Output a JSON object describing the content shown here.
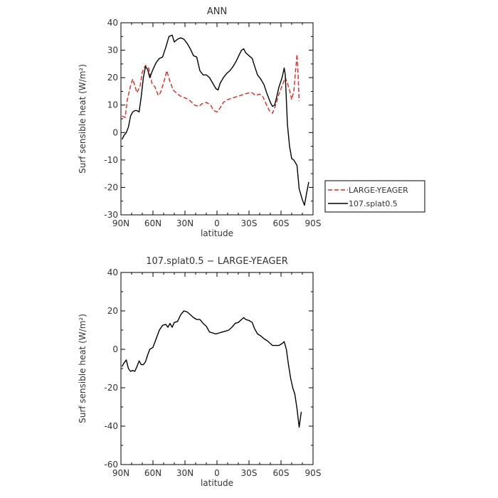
{
  "chart_data": [
    {
      "type": "line",
      "title": "ANN",
      "xlabel": "latitude",
      "ylabel": "Surf sensible heat (W/m²)",
      "xlim": [
        90,
        -90
      ],
      "ylim": [
        -30,
        40
      ],
      "x_ticks": [
        {
          "value": 90,
          "label": "90N"
        },
        {
          "value": 60,
          "label": "60N"
        },
        {
          "value": 30,
          "label": "30N"
        },
        {
          "value": 0,
          "label": "0"
        },
        {
          "value": -30,
          "label": "30S"
        },
        {
          "value": -60,
          "label": "60S"
        },
        {
          "value": -90,
          "label": "90S"
        }
      ],
      "y_ticks": [
        40,
        30,
        20,
        10,
        0,
        -10,
        -20,
        -30
      ],
      "legend": {
        "position": "right"
      },
      "series": [
        {
          "name": "LARGE-YEAGER",
          "color": "#e8231f",
          "dash": "dashed",
          "points": [
            [
              89,
              6
            ],
            [
              86,
              5.5
            ],
            [
              84,
              12
            ],
            [
              81,
              17
            ],
            [
              79,
              19.5
            ],
            [
              77,
              17
            ],
            [
              75,
              14.5
            ],
            [
              72,
              17
            ],
            [
              70,
              22
            ],
            [
              67,
              24.5
            ],
            [
              64,
              23.5
            ],
            [
              61,
              18
            ],
            [
              58,
              16.5
            ],
            [
              55,
              13.5
            ],
            [
              53,
              14.5
            ],
            [
              50,
              18
            ],
            [
              47,
              22.5
            ],
            [
              44,
              18.5
            ],
            [
              41,
              15.5
            ],
            [
              37,
              14
            ],
            [
              33,
              13
            ],
            [
              29,
              12.5
            ],
            [
              25,
              11.5
            ],
            [
              21,
              10
            ],
            [
              17,
              9.5
            ],
            [
              14,
              10.5
            ],
            [
              10,
              11
            ],
            [
              6,
              10
            ],
            [
              3,
              8
            ],
            [
              0,
              7.5
            ],
            [
              -3,
              9
            ],
            [
              -6,
              11
            ],
            [
              -10,
              12
            ],
            [
              -14,
              12.5
            ],
            [
              -18,
              13
            ],
            [
              -22,
              13.5
            ],
            [
              -26,
              14
            ],
            [
              -30,
              14.5
            ],
            [
              -33,
              14.5
            ],
            [
              -36,
              13.5
            ],
            [
              -40,
              14
            ],
            [
              -43,
              13
            ],
            [
              -46,
              10.5
            ],
            [
              -49,
              8
            ],
            [
              -52,
              7
            ],
            [
              -55,
              10
            ],
            [
              -58,
              14
            ],
            [
              -61,
              17
            ],
            [
              -64,
              20
            ],
            [
              -66,
              18
            ],
            [
              -68,
              15.5
            ],
            [
              -70,
              12
            ],
            [
              -72,
              15
            ],
            [
              -74,
              24
            ],
            [
              -75,
              28.5
            ],
            [
              -76,
              21
            ],
            [
              -77,
              11.5
            ]
          ]
        },
        {
          "name": "107.splat0.5",
          "color": "#000000",
          "dash": "solid",
          "points": [
            [
              89,
              -2.5
            ],
            [
              87,
              -1
            ],
            [
              85,
              0
            ],
            [
              83,
              2
            ],
            [
              81,
              6
            ],
            [
              79,
              7.5
            ],
            [
              77,
              8
            ],
            [
              75,
              8
            ],
            [
              73,
              7.5
            ],
            [
              71,
              13
            ],
            [
              69,
              20
            ],
            [
              67,
              24
            ],
            [
              65,
              23
            ],
            [
              63,
              20
            ],
            [
              60,
              23
            ],
            [
              57,
              25.5
            ],
            [
              54,
              27
            ],
            [
              51,
              27.5
            ],
            [
              48,
              31
            ],
            [
              45,
              35
            ],
            [
              42,
              35.5
            ],
            [
              40,
              33
            ],
            [
              37,
              34
            ],
            [
              34,
              34.5
            ],
            [
              31,
              34
            ],
            [
              28,
              32.5
            ],
            [
              25,
              30.5
            ],
            [
              22,
              28
            ],
            [
              19,
              27.5
            ],
            [
              16,
              22.5
            ],
            [
              13,
              21
            ],
            [
              10,
              21
            ],
            [
              7,
              20
            ],
            [
              4,
              18
            ],
            [
              1,
              16
            ],
            [
              -1,
              15.5
            ],
            [
              -3,
              18
            ],
            [
              -6,
              20
            ],
            [
              -9,
              21.5
            ],
            [
              -12,
              22.5
            ],
            [
              -15,
              24
            ],
            [
              -18,
              26
            ],
            [
              -21,
              28.5
            ],
            [
              -23,
              30
            ],
            [
              -25,
              30.5
            ],
            [
              -27,
              29
            ],
            [
              -30,
              28
            ],
            [
              -33,
              27
            ],
            [
              -35,
              24.5
            ],
            [
              -38,
              21
            ],
            [
              -41,
              19.5
            ],
            [
              -44,
              17.5
            ],
            [
              -47,
              14
            ],
            [
              -50,
              11
            ],
            [
              -52,
              9.5
            ],
            [
              -54,
              10
            ],
            [
              -56,
              13
            ],
            [
              -58,
              16.5
            ],
            [
              -61,
              20
            ],
            [
              -63,
              23.5
            ],
            [
              -64,
              21
            ],
            [
              -66,
              3
            ],
            [
              -68,
              -5
            ],
            [
              -70,
              -9.5
            ],
            [
              -72,
              -10
            ],
            [
              -75,
              -12
            ],
            [
              -77,
              -20.5
            ],
            [
              -80,
              -24.5
            ],
            [
              -82,
              -26.5
            ],
            [
              -84,
              -22
            ],
            [
              -86,
              -18
            ]
          ]
        }
      ]
    },
    {
      "type": "line",
      "title": "107.splat0.5 − LARGE-YEAGER",
      "xlabel": "latitude",
      "ylabel": "Surf sensible heat (W/m²)",
      "xlim": [
        90,
        -90
      ],
      "ylim": [
        -60,
        40
      ],
      "x_ticks": [
        {
          "value": 90,
          "label": "90N"
        },
        {
          "value": 60,
          "label": "60N"
        },
        {
          "value": 30,
          "label": "30N"
        },
        {
          "value": 0,
          "label": "0"
        },
        {
          "value": -30,
          "label": "30S"
        },
        {
          "value": -60,
          "label": "60S"
        },
        {
          "value": -90,
          "label": "90S"
        }
      ],
      "y_ticks": [
        40,
        20,
        0,
        -20,
        -40,
        -60
      ],
      "series": [
        {
          "color": "#000000",
          "dash": "solid",
          "points": [
            [
              89,
              -9
            ],
            [
              87,
              -7
            ],
            [
              85,
              -5.5
            ],
            [
              83,
              -10
            ],
            [
              81,
              -11.5
            ],
            [
              79,
              -11
            ],
            [
              77,
              -11.5
            ],
            [
              75,
              -9
            ],
            [
              73,
              -6
            ],
            [
              71,
              -8
            ],
            [
              69,
              -8
            ],
            [
              67,
              -6.5
            ],
            [
              65,
              -3
            ],
            [
              63,
              0
            ],
            [
              60,
              1
            ],
            [
              58,
              4
            ],
            [
              56,
              7
            ],
            [
              54,
              10
            ],
            [
              51,
              12.5
            ],
            [
              48,
              13
            ],
            [
              46,
              11.5
            ],
            [
              44,
              13.5
            ],
            [
              42,
              11.5
            ],
            [
              40,
              14
            ],
            [
              37,
              14.5
            ],
            [
              34,
              18
            ],
            [
              31,
              20
            ],
            [
              28,
              19.5
            ],
            [
              25,
              18
            ],
            [
              22,
              16.5
            ],
            [
              19,
              15.5
            ],
            [
              16,
              15.5
            ],
            [
              13,
              13.5
            ],
            [
              10,
              12
            ],
            [
              7,
              9
            ],
            [
              4,
              8.5
            ],
            [
              1,
              8
            ],
            [
              -2,
              8.5
            ],
            [
              -5,
              9
            ],
            [
              -8,
              9.5
            ],
            [
              -11,
              10
            ],
            [
              -14,
              11.5
            ],
            [
              -17,
              13.5
            ],
            [
              -20,
              14
            ],
            [
              -23,
              15.5
            ],
            [
              -25,
              16.5
            ],
            [
              -27,
              15.5
            ],
            [
              -30,
              15
            ],
            [
              -33,
              14
            ],
            [
              -35,
              11
            ],
            [
              -38,
              8
            ],
            [
              -41,
              7
            ],
            [
              -44,
              5.5
            ],
            [
              -47,
              4.5
            ],
            [
              -50,
              3
            ],
            [
              -52,
              2
            ],
            [
              -55,
              2
            ],
            [
              -58,
              2
            ],
            [
              -61,
              3
            ],
            [
              -63,
              4
            ],
            [
              -65,
              0
            ],
            [
              -67,
              -8
            ],
            [
              -69,
              -15
            ],
            [
              -71,
              -20
            ],
            [
              -73,
              -23.5
            ],
            [
              -75,
              -31
            ],
            [
              -77,
              -40.5
            ],
            [
              -79,
              -32.5
            ]
          ]
        }
      ]
    }
  ]
}
